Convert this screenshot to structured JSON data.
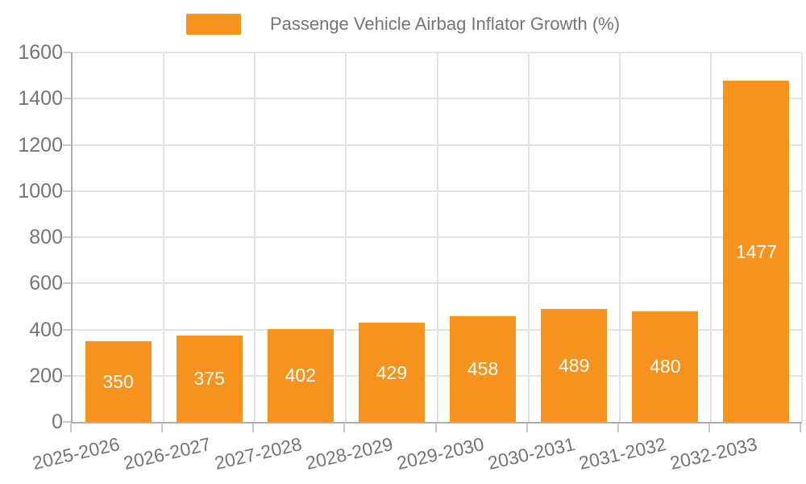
{
  "chart_data": {
    "type": "bar",
    "title": "Passenge Vehicle Airbag Inflator Growth (%)",
    "categories": [
      "2025-2026",
      "2026-2027",
      "2027-2028",
      "2028-2029",
      "2029-2030",
      "2030-2031",
      "2031-2032",
      "2032-2033"
    ],
    "values": [
      350,
      375,
      402,
      429,
      458,
      489,
      480,
      1477
    ],
    "xlabel": "",
    "ylabel": "",
    "ylim": [
      0,
      1600
    ],
    "ytick_interval": 200,
    "yticks": [
      0,
      200,
      400,
      600,
      800,
      1000,
      1200,
      1400,
      1600
    ],
    "grid": "horizontal and vertical",
    "legend_position": "top-center",
    "value_labels": "white, centered inside bars"
  },
  "colors": {
    "bar": "#f6921e",
    "value_label": "#ffffff",
    "axis_text": "#757575",
    "legend_text": "#757575",
    "axis_line": "#aeaeae",
    "gridline": "#e2e2e2",
    "tick": "#c9c9c9",
    "background": "#ffffff"
  }
}
